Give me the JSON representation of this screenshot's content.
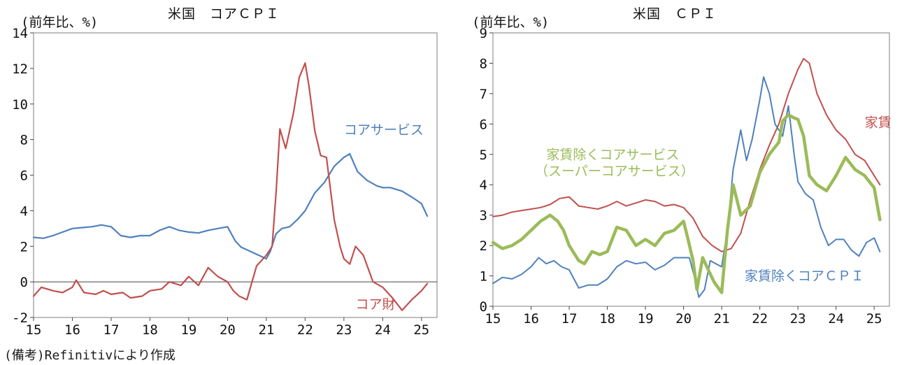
{
  "note": "(備考)Refinitivにより作成",
  "colors": {
    "red": "#c0504d",
    "blue": "#4f81bd",
    "green": "#9bbb59"
  },
  "chart_data": [
    {
      "type": "line",
      "title": "米国　コアＣＰＩ",
      "unit_label": "(前年比、%)",
      "xlabel": "",
      "ylabel": "",
      "ylim": [
        -2,
        14
      ],
      "yticks": [
        -2,
        0,
        2,
        4,
        6,
        8,
        10,
        12,
        14
      ],
      "xlim": [
        2015.0,
        2025.4
      ],
      "xticks": [
        15,
        16,
        17,
        18,
        19,
        20,
        21,
        22,
        23,
        24,
        25
      ],
      "zero_line": true,
      "series": [
        {
          "name": "コアサービス",
          "color": "#4f81bd",
          "x": [
            2015.0,
            2015.25,
            2015.5,
            2015.75,
            2016.0,
            2016.25,
            2016.5,
            2016.75,
            2017.0,
            2017.25,
            2017.5,
            2017.75,
            2018.0,
            2018.25,
            2018.5,
            2018.75,
            2019.0,
            2019.25,
            2019.5,
            2019.75,
            2020.0,
            2020.2,
            2020.35,
            2020.5,
            2020.7,
            2020.9,
            2021.0,
            2021.1,
            2021.25,
            2021.4,
            2021.6,
            2021.8,
            2022.0,
            2022.25,
            2022.5,
            2022.75,
            2023.0,
            2023.15,
            2023.35,
            2023.6,
            2023.85,
            2024.0,
            2024.2,
            2024.5,
            2024.8,
            2025.0,
            2025.15
          ],
          "values": [
            2.5,
            2.45,
            2.6,
            2.8,
            3.0,
            3.05,
            3.1,
            3.2,
            3.1,
            2.6,
            2.5,
            2.6,
            2.6,
            2.9,
            3.1,
            2.9,
            2.8,
            2.75,
            2.9,
            3.0,
            3.1,
            2.3,
            1.95,
            1.8,
            1.6,
            1.4,
            1.3,
            1.7,
            2.7,
            3.0,
            3.1,
            3.5,
            4.0,
            5.0,
            5.6,
            6.5,
            7.0,
            7.2,
            6.2,
            5.7,
            5.4,
            5.3,
            5.3,
            5.1,
            4.7,
            4.4,
            3.7
          ]
        },
        {
          "name": "コア財",
          "color": "#c0504d",
          "x": [
            2015.0,
            2015.2,
            2015.5,
            2015.75,
            2016.0,
            2016.1,
            2016.3,
            2016.6,
            2016.8,
            2017.0,
            2017.3,
            2017.5,
            2017.8,
            2018.0,
            2018.3,
            2018.5,
            2018.8,
            2019.0,
            2019.25,
            2019.5,
            2019.75,
            2020.0,
            2020.15,
            2020.3,
            2020.5,
            2020.75,
            2021.0,
            2021.15,
            2021.25,
            2021.35,
            2021.5,
            2021.7,
            2021.85,
            2022.0,
            2022.1,
            2022.25,
            2022.4,
            2022.55,
            2022.75,
            2022.9,
            2023.0,
            2023.15,
            2023.3,
            2023.5,
            2023.75,
            2024.0,
            2024.25,
            2024.5,
            2024.75,
            2025.0,
            2025.15
          ],
          "values": [
            -0.8,
            -0.3,
            -0.5,
            -0.6,
            -0.3,
            0.1,
            -0.6,
            -0.7,
            -0.5,
            -0.7,
            -0.6,
            -0.9,
            -0.8,
            -0.5,
            -0.4,
            0.0,
            -0.2,
            0.3,
            -0.2,
            0.8,
            0.3,
            0.0,
            -0.5,
            -0.8,
            -1.0,
            0.9,
            1.5,
            2.0,
            5.0,
            8.6,
            7.5,
            9.5,
            11.5,
            12.3,
            11.0,
            8.5,
            7.1,
            7.0,
            3.5,
            2.0,
            1.3,
            1.0,
            2.0,
            1.5,
            0.0,
            -0.3,
            -0.9,
            -1.6,
            -1.0,
            -0.5,
            -0.1
          ]
        }
      ],
      "annotations": [
        {
          "text": "コアサービス",
          "color": "#4f81bd",
          "x": 2023.0,
          "y": 8.3
        },
        {
          "text": "コア財",
          "color": "#c0504d",
          "x": 2023.3,
          "y": -1.5
        }
      ]
    },
    {
      "type": "line",
      "title": "米国　ＣＰＩ",
      "unit_label": "(前年比、%)",
      "xlabel": "",
      "ylabel": "",
      "ylim": [
        0,
        9
      ],
      "yticks": [
        0,
        1,
        2,
        3,
        4,
        5,
        6,
        7,
        8,
        9
      ],
      "xlim": [
        2015.0,
        2025.4
      ],
      "xticks": [
        15,
        16,
        17,
        18,
        19,
        20,
        21,
        22,
        23,
        24,
        25
      ],
      "zero_line": false,
      "series": [
        {
          "name": "家賃",
          "color": "#c0504d",
          "x": [
            2015.0,
            2015.25,
            2015.5,
            2015.75,
            2016.0,
            2016.25,
            2016.5,
            2016.75,
            2017.0,
            2017.25,
            2017.5,
            2017.75,
            2018.0,
            2018.25,
            2018.5,
            2018.75,
            2019.0,
            2019.25,
            2019.5,
            2019.75,
            2020.0,
            2020.25,
            2020.5,
            2020.75,
            2021.0,
            2021.25,
            2021.5,
            2021.75,
            2022.0,
            2022.25,
            2022.5,
            2022.75,
            2023.0,
            2023.15,
            2023.3,
            2023.5,
            2023.75,
            2024.0,
            2024.25,
            2024.5,
            2024.75,
            2025.0,
            2025.15
          ],
          "values": [
            2.95,
            3.0,
            3.1,
            3.15,
            3.2,
            3.25,
            3.35,
            3.55,
            3.6,
            3.3,
            3.25,
            3.2,
            3.3,
            3.45,
            3.3,
            3.4,
            3.5,
            3.45,
            3.3,
            3.35,
            3.25,
            2.9,
            2.3,
            2.0,
            1.8,
            1.9,
            2.4,
            3.5,
            4.5,
            5.3,
            6.0,
            7.0,
            7.8,
            8.15,
            8.0,
            7.0,
            6.3,
            5.8,
            5.5,
            5.0,
            4.8,
            4.3,
            4.0
          ]
        },
        {
          "name": "家賃除くコアＣＰＩ",
          "color": "#4f81bd",
          "x": [
            2015.0,
            2015.25,
            2015.5,
            2015.75,
            2016.0,
            2016.2,
            2016.4,
            2016.6,
            2016.8,
            2017.0,
            2017.25,
            2017.5,
            2017.75,
            2018.0,
            2018.25,
            2018.5,
            2018.75,
            2019.0,
            2019.25,
            2019.5,
            2019.75,
            2019.9,
            2020.0,
            2020.15,
            2020.3,
            2020.4,
            2020.55,
            2020.7,
            2020.85,
            2021.0,
            2021.15,
            2021.3,
            2021.5,
            2021.65,
            2021.8,
            2022.0,
            2022.1,
            2022.25,
            2022.4,
            2022.6,
            2022.75,
            2022.9,
            2023.0,
            2023.2,
            2023.4,
            2023.6,
            2023.8,
            2024.0,
            2024.2,
            2024.4,
            2024.6,
            2024.8,
            2025.0,
            2025.15
          ],
          "values": [
            0.75,
            0.95,
            0.9,
            1.05,
            1.3,
            1.6,
            1.4,
            1.5,
            1.3,
            1.2,
            0.6,
            0.7,
            0.7,
            0.9,
            1.3,
            1.5,
            1.4,
            1.45,
            1.2,
            1.35,
            1.6,
            1.6,
            1.6,
            1.6,
            0.9,
            0.3,
            0.55,
            1.5,
            1.4,
            1.3,
            2.5,
            4.5,
            5.8,
            4.8,
            5.5,
            6.8,
            7.55,
            7.0,
            6.0,
            5.6,
            6.6,
            5.0,
            4.1,
            3.7,
            3.5,
            2.6,
            2.0,
            2.2,
            2.2,
            1.85,
            1.65,
            2.1,
            2.25,
            1.8
          ]
        },
        {
          "name": "家賃除くコアサービス\n（スーパーコアサービス）",
          "color": "#9bbb59",
          "x": [
            2015.0,
            2015.25,
            2015.5,
            2015.75,
            2016.0,
            2016.25,
            2016.5,
            2016.7,
            2016.85,
            2017.0,
            2017.25,
            2017.4,
            2017.6,
            2017.8,
            2018.0,
            2018.25,
            2018.5,
            2018.75,
            2019.0,
            2019.25,
            2019.5,
            2019.75,
            2020.0,
            2020.1,
            2020.25,
            2020.35,
            2020.5,
            2020.65,
            2020.8,
            2021.0,
            2021.15,
            2021.3,
            2021.5,
            2021.75,
            2022.0,
            2022.25,
            2022.5,
            2022.6,
            2022.75,
            2022.9,
            2023.0,
            2023.15,
            2023.3,
            2023.5,
            2023.75,
            2024.0,
            2024.25,
            2024.5,
            2024.75,
            2025.0,
            2025.15
          ],
          "values": [
            2.1,
            1.9,
            2.0,
            2.2,
            2.5,
            2.8,
            3.0,
            2.8,
            2.5,
            2.0,
            1.5,
            1.4,
            1.8,
            1.7,
            1.8,
            2.6,
            2.5,
            2.0,
            2.2,
            2.0,
            2.4,
            2.5,
            2.8,
            2.3,
            1.5,
            0.55,
            1.6,
            1.2,
            0.8,
            0.45,
            2.5,
            4.0,
            3.0,
            3.3,
            4.4,
            5.0,
            5.4,
            6.1,
            6.3,
            6.2,
            6.15,
            5.6,
            4.3,
            4.0,
            3.8,
            4.3,
            4.9,
            4.5,
            4.3,
            3.9,
            2.85
          ]
        }
      ],
      "annotations": [
        {
          "text": "家賃",
          "color": "#c0504d",
          "x": 2024.75,
          "y": 5.9
        },
        {
          "text": "家賃除くコアサービス",
          "color": "#9bbb59",
          "x": 2016.4,
          "y": 4.85
        },
        {
          "text": "（スーパーコアサービス）",
          "color": "#9bbb59",
          "x": 2016.1,
          "y": 4.3
        },
        {
          "text": "家賃除くコアＣＰＩ",
          "color": "#4f81bd",
          "x": 2021.6,
          "y": 0.85
        }
      ]
    }
  ]
}
